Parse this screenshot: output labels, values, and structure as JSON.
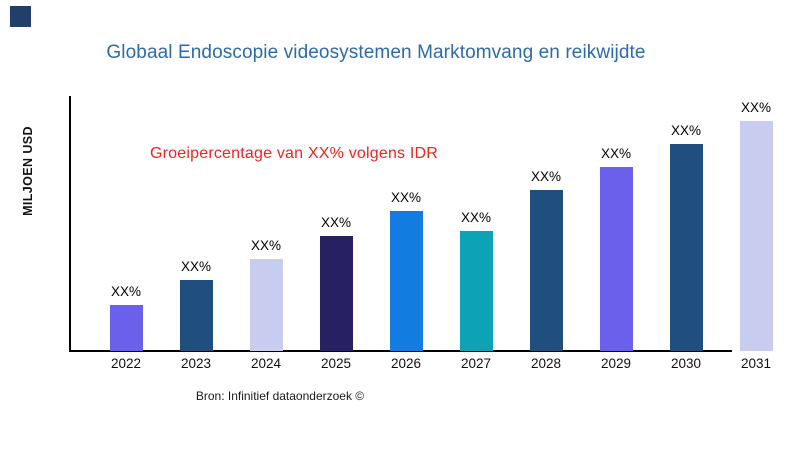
{
  "theme": {
    "background": "#ffffff",
    "title_color": "#2E6AA3",
    "annotation_color": "#EE2424",
    "axis_color": "#000000",
    "logo_color": "#223F6B"
  },
  "header": {
    "title": "Globaal Endoscopie videosystemen Marktomvang en reikwijdte"
  },
  "annotation": {
    "text": "Groeipercentage van XX% volgens IDR"
  },
  "axes": {
    "y_label": "MILJOEN USD"
  },
  "footer": {
    "source": "Bron: Infinitief dataonderzoek ©"
  },
  "chart_data": {
    "type": "bar",
    "title": "Globaal Endoscopie videosystemen Marktomvang en reikwijdte",
    "xlabel": "",
    "ylabel": "MILJOEN USD",
    "categories": [
      "2022",
      "2023",
      "2024",
      "2025",
      "2026",
      "2027",
      "2028",
      "2029",
      "2030",
      "2031"
    ],
    "bar_labels": [
      "XX%",
      "XX%",
      "XX%",
      "XX%",
      "XX%",
      "XX%",
      "XX%",
      "XX%",
      "XX%",
      "XX%"
    ],
    "values_masked": true,
    "values_est_relative_pct": [
      18,
      28,
      36,
      45,
      55,
      47,
      63,
      72,
      81,
      90
    ],
    "bar_colors": [
      "#6B60EC",
      "#204E7E",
      "#C8CCEE",
      "#272061",
      "#137CE0",
      "#0BA3B5",
      "#204E7E",
      "#6B60EC",
      "#204E7E",
      "#C8CCEE"
    ],
    "annotation": "Groeipercentage van XX% volgens IDR",
    "ylim": "not shown (no value ticks; amounts masked as XX%)",
    "grid": false,
    "legend": "none",
    "source": "Bron: Infinitief dataonderzoek ©"
  }
}
